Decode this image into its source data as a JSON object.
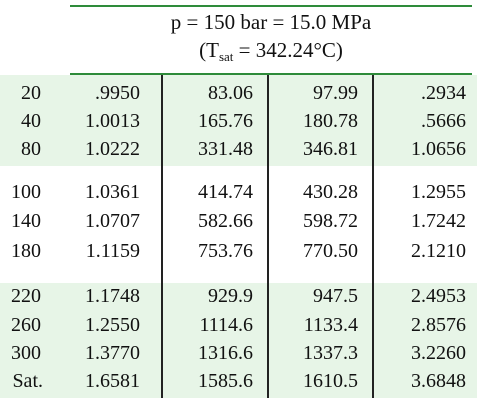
{
  "header": {
    "pressure": "p = 150 bar = 15.0 MPa",
    "sat_prefix": "(T",
    "sat_sub": "sat",
    "sat_suffix": " = 342.24°C)"
  },
  "table": {
    "rows": [
      [
        "20",
        ".9950",
        "83.06",
        "97.99",
        ".2934"
      ],
      [
        "40",
        "1.0013",
        "165.76",
        "180.78",
        ".5666"
      ],
      [
        "80",
        "1.0222",
        "331.48",
        "346.81",
        "1.0656"
      ],
      [
        "100",
        "1.0361",
        "414.74",
        "430.28",
        "1.2955"
      ],
      [
        "140",
        "1.0707",
        "582.66",
        "598.72",
        "1.7242"
      ],
      [
        "180",
        "1.1159",
        "753.76",
        "770.50",
        "2.1210"
      ],
      [
        "220",
        "1.1748",
        "929.9",
        "947.5",
        "2.4953"
      ],
      [
        "260",
        "1.2550",
        "1114.6",
        "1133.4",
        "2.8576"
      ],
      [
        "300",
        "1.3770",
        "1316.6",
        "1337.3",
        "3.2260"
      ],
      [
        "Sat.",
        "1.6581",
        "1585.6",
        "1610.5",
        "3.6848"
      ]
    ]
  },
  "colors": {
    "rule": "#2e8b3a",
    "band": "#e7f5e7",
    "divider": "#222222"
  }
}
